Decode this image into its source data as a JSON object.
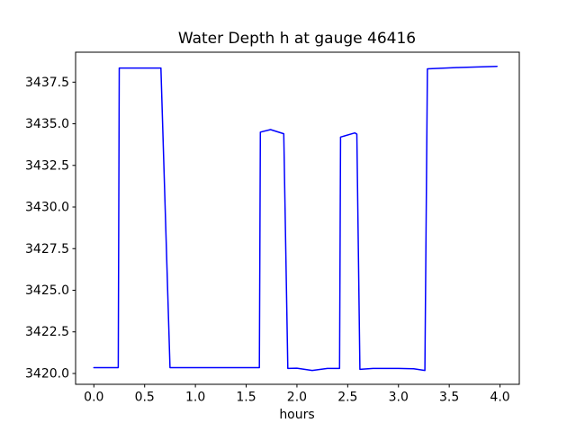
{
  "chart": {
    "title": "Water Depth h at gauge 46416",
    "xlabel": "hours",
    "background_color": "#ffffff",
    "frame_color": "#000000",
    "text_color": "#000000",
    "xtick_labels": [
      "0.0",
      "0.5",
      "1.0",
      "1.5",
      "2.0",
      "2.5",
      "3.0",
      "3.5",
      "4.0"
    ],
    "ytick_labels": [
      "3420.0",
      "3422.5",
      "3425.0",
      "3427.5",
      "3430.0",
      "3432.5",
      "3435.0",
      "3437.5"
    ]
  },
  "chart_data": {
    "type": "line",
    "title": "Water Depth h at gauge 46416",
    "xlabel": "hours",
    "ylabel": "",
    "xlim": [
      -0.18,
      4.19
    ],
    "ylim": [
      3419.35,
      3439.3
    ],
    "xticks": [
      0.0,
      0.5,
      1.0,
      1.5,
      2.0,
      2.5,
      3.0,
      3.5,
      4.0
    ],
    "yticks": [
      3420.0,
      3422.5,
      3425.0,
      3427.5,
      3430.0,
      3432.5,
      3435.0,
      3437.5
    ],
    "grid": false,
    "legend": false,
    "series": [
      {
        "name": "water depth h",
        "color": "#0000ff",
        "linewidth": 1.5,
        "points": [
          [
            0.0,
            3420.35
          ],
          [
            0.24,
            3420.35
          ],
          [
            0.25,
            3438.35
          ],
          [
            0.66,
            3438.35
          ],
          [
            0.75,
            3420.35
          ],
          [
            1.63,
            3420.35
          ],
          [
            1.64,
            3434.5
          ],
          [
            1.74,
            3434.65
          ],
          [
            1.87,
            3434.4
          ],
          [
            1.91,
            3420.3
          ],
          [
            2.0,
            3420.32
          ],
          [
            2.15,
            3420.18
          ],
          [
            2.3,
            3420.3
          ],
          [
            2.42,
            3420.3
          ],
          [
            2.43,
            3434.2
          ],
          [
            2.57,
            3434.45
          ],
          [
            2.59,
            3434.38
          ],
          [
            2.62,
            3420.25
          ],
          [
            2.75,
            3420.3
          ],
          [
            3.0,
            3420.3
          ],
          [
            3.15,
            3420.28
          ],
          [
            3.26,
            3420.18
          ],
          [
            3.285,
            3438.3
          ],
          [
            3.6,
            3438.38
          ],
          [
            3.97,
            3438.45
          ]
        ]
      }
    ]
  }
}
